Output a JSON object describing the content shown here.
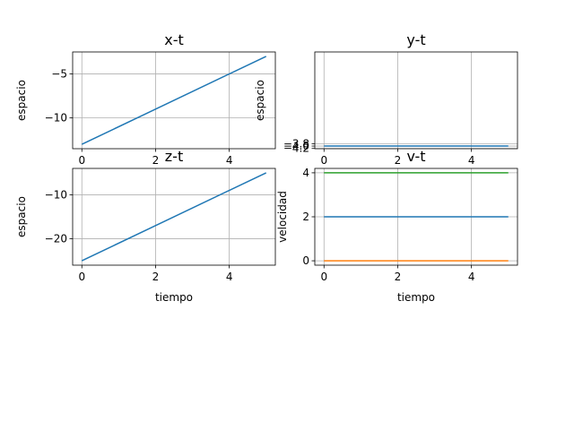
{
  "chart_data": [
    {
      "type": "line",
      "title": "x-t",
      "xlabel": "",
      "ylabel": "espacio",
      "xlim": [
        -0.25,
        5.25
      ],
      "ylim": [
        -13.5,
        -2.5
      ],
      "xticks": [
        0,
        2,
        4
      ],
      "yticks": [
        -5,
        -10
      ],
      "ytick_labels": [
        "−5",
        "−10"
      ],
      "grid": true,
      "series": [
        {
          "color": "#1f77b4",
          "x": [
            0,
            5
          ],
          "y": [
            -13,
            -3
          ]
        }
      ]
    },
    {
      "type": "line",
      "title": "y-t",
      "xlabel": "",
      "ylabel": "espacio",
      "xlim": [
        -0.25,
        5.25
      ],
      "ylim": [
        -4.22,
        3.82
      ],
      "xticks": [
        0,
        2,
        4
      ],
      "yticks": [
        -3.8,
        -4.0,
        -4.2
      ],
      "ytick_labels": [
        "−3.8",
        "−4.0",
        "−4.2"
      ],
      "grid": true,
      "series": [
        {
          "color": "#1f77b4",
          "x": [
            0,
            5
          ],
          "y": [
            -4.0,
            -4.0
          ]
        }
      ]
    },
    {
      "type": "line",
      "title": "z-t",
      "xlabel": "tiempo",
      "ylabel": "espacio",
      "xlim": [
        -0.25,
        5.25
      ],
      "ylim": [
        -26,
        -4
      ],
      "xticks": [
        0,
        2,
        4
      ],
      "yticks": [
        -10,
        -20
      ],
      "ytick_labels": [
        "−10",
        "−20"
      ],
      "grid": true,
      "series": [
        {
          "color": "#1f77b4",
          "x": [
            0,
            5
          ],
          "y": [
            -25,
            -5
          ]
        }
      ]
    },
    {
      "type": "line",
      "title": "v-t",
      "xlabel": "tiempo",
      "ylabel": "velocidad",
      "xlim": [
        -0.25,
        5.25
      ],
      "ylim": [
        -0.2,
        4.2
      ],
      "xticks": [
        0,
        2,
        4
      ],
      "yticks": [
        0,
        2,
        4
      ],
      "ytick_labels": [
        "0",
        "2",
        "4"
      ],
      "grid": true,
      "series": [
        {
          "color": "#1f77b4",
          "x": [
            0,
            5
          ],
          "y": [
            2,
            2
          ]
        },
        {
          "color": "#ff7f0e",
          "x": [
            0,
            5
          ],
          "y": [
            0,
            0
          ]
        },
        {
          "color": "#2ca02c",
          "x": [
            0,
            5
          ],
          "y": [
            4,
            4
          ]
        }
      ]
    }
  ]
}
